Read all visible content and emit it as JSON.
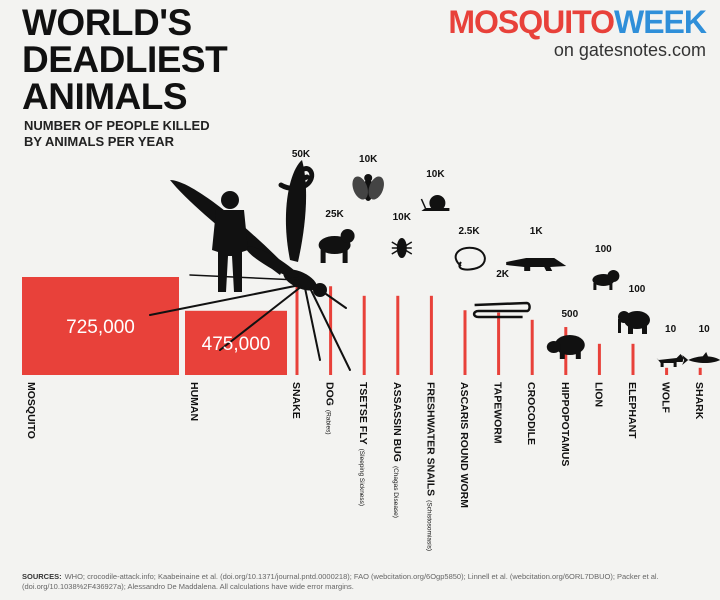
{
  "title": [
    "WORLD'S",
    "DEADLIEST",
    "ANIMALS"
  ],
  "subtitle": [
    "NUMBER OF PEOPLE KILLED",
    "BY ANIMALS PER YEAR"
  ],
  "brand": {
    "part1": "MOSQUITO",
    "part2": "WEEK",
    "sub": "on gatesnotes.com"
  },
  "colors": {
    "bar": "#e8413a",
    "bar_label": "#ffffff",
    "brand_red": "#e8413a",
    "brand_blue": "#2f8fd9"
  },
  "chart_data": {
    "type": "bar",
    "categories": [
      {
        "name": "MOSQUITO",
        "note": "",
        "value": 725000,
        "label": "725,000",
        "icon": "mosquito-icon"
      },
      {
        "name": "HUMAN",
        "note": "",
        "value": 475000,
        "label": "475,000",
        "icon": "human-icon"
      },
      {
        "name": "SNAKE",
        "note": "",
        "value": 50000,
        "label": "50K",
        "icon": "snake-icon"
      },
      {
        "name": "DOG",
        "note": "(Rabies)",
        "value": 25000,
        "label": "25K",
        "icon": "dog-icon"
      },
      {
        "name": "TSETSE FLY",
        "note": "(Sleeping Sickness)",
        "value": 10000,
        "label": "10K",
        "icon": "fly-icon"
      },
      {
        "name": "ASSASSIN BUG",
        "note": "(Chagas Disease)",
        "value": 10000,
        "label": "10K",
        "icon": "bug-icon"
      },
      {
        "name": "FRESHWATER SNAILS",
        "note": "(Schistosomiasis)",
        "value": 10000,
        "label": "10K",
        "icon": "snail-icon"
      },
      {
        "name": "ASCARIS ROUND WORM",
        "note": "",
        "value": 2500,
        "label": "2.5K",
        "icon": "roundworm-icon"
      },
      {
        "name": "TAPEWORM",
        "note": "",
        "value": 2000,
        "label": "2K",
        "icon": "tapeworm-icon"
      },
      {
        "name": "CROCODILE",
        "note": "",
        "value": 1000,
        "label": "1K",
        "icon": "crocodile-icon"
      },
      {
        "name": "HIPPOPOTAMUS",
        "note": "",
        "value": 500,
        "label": "500",
        "icon": "hippo-icon"
      },
      {
        "name": "LION",
        "note": "",
        "value": 100,
        "label": "100",
        "icon": "lion-icon"
      },
      {
        "name": "ELEPHANT",
        "note": "",
        "value": 100,
        "label": "100",
        "icon": "elephant-icon"
      },
      {
        "name": "WOLF",
        "note": "",
        "value": 10,
        "label": "10",
        "icon": "wolf-icon"
      },
      {
        "name": "SHARK",
        "note": "",
        "value": 10,
        "label": "10",
        "icon": "shark-icon"
      }
    ],
    "title": "WORLD'S DEADLIEST ANIMALS",
    "subtitle": "NUMBER OF PEOPLE KILLED BY ANIMALS PER YEAR",
    "xlabel": "",
    "ylabel": ""
  },
  "sources": {
    "label": "SOURCES:",
    "text": "WHO; crocodile-attack.info; Kaabeinaine et al. (doi.org/10.1371/journal.pntd.0000218); FAO (webcitation.org/6Ogp5850); Linnell et al. (webcitation.org/6ORL7DBUO); Packer et al. (doi.org/10.1038%2F436927a); Alessandro De Maddalena. All calculations have wide error margins."
  }
}
